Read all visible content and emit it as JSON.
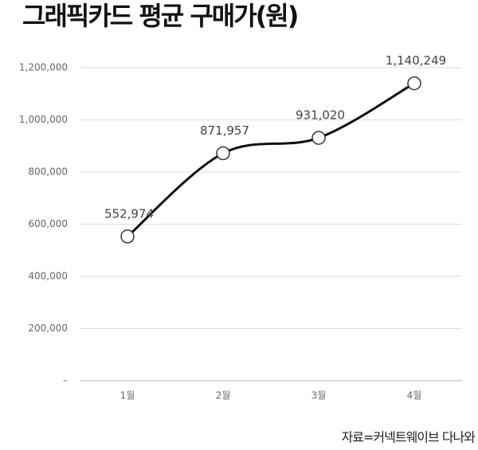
{
  "chart_data": {
    "type": "line",
    "title": "그래픽카드 평균 구매가(원)",
    "categories": [
      "1월",
      "2월",
      "3월",
      "4월"
    ],
    "series": [
      {
        "name": "평균 구매가",
        "color": "#111111",
        "values": [
          552974,
          871957,
          931020,
          1140249
        ],
        "value_labels": [
          "552,974",
          "871,957",
          "931,020",
          "1,140,249"
        ]
      }
    ],
    "ylim": [
      0,
      1200000
    ],
    "yticks": [
      {
        "value": 0,
        "label": "–"
      },
      {
        "value": 200000,
        "label": "200,000"
      },
      {
        "value": 400000,
        "label": "400,000"
      },
      {
        "value": 600000,
        "label": "600,000"
      },
      {
        "value": 800000,
        "label": "800,000"
      },
      {
        "value": 1000000,
        "label": "1,000,000"
      },
      {
        "value": 1200000,
        "label": "1,200,000"
      }
    ],
    "grid": true,
    "source": "자료=커넥트웨이브 다나와"
  }
}
